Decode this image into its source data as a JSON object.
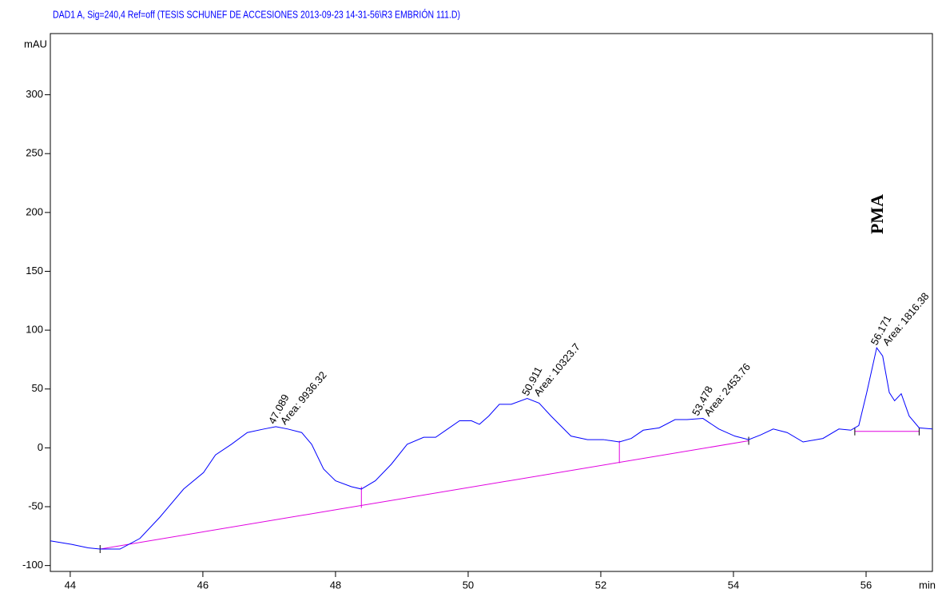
{
  "chart_data": {
    "type": "line",
    "title": "DAD1 A, Sig=240,4 Ref=off (TESIS SCHUNEF DE ACCESIONES 2013-09-23 14-31-56\\R3 EMBRIÓN 111.D)",
    "y_label": "mAU",
    "x_label": "min",
    "annotation": "PMA",
    "xlim": [
      43.7,
      57.0
    ],
    "ylim": [
      -105,
      352
    ],
    "xticks": [
      44,
      46,
      48,
      50,
      52,
      54,
      56
    ],
    "yticks": [
      -100,
      -50,
      0,
      50,
      100,
      150,
      200,
      250,
      300
    ],
    "x": [
      43.7,
      44.02,
      44.27,
      44.45,
      44.75,
      45.05,
      45.35,
      45.71,
      46.01,
      46.19,
      46.43,
      46.67,
      46.92,
      47.1,
      47.28,
      47.49,
      47.64,
      47.82,
      48.0,
      48.24,
      48.39,
      48.6,
      48.84,
      49.08,
      49.33,
      49.51,
      49.69,
      49.87,
      50.05,
      50.17,
      50.31,
      50.47,
      50.65,
      50.89,
      51.07,
      51.25,
      51.55,
      51.8,
      52.04,
      52.28,
      52.46,
      52.64,
      52.88,
      53.12,
      53.3,
      53.54,
      53.78,
      54.02,
      54.23,
      54.41,
      54.6,
      54.81,
      55.05,
      55.35,
      55.59,
      55.77,
      55.89,
      56.01,
      56.16,
      56.25,
      56.35,
      56.43,
      56.53,
      56.65,
      56.8,
      57.0
    ],
    "series": [
      {
        "color": "#0000ff",
        "values": [
          -79,
          -82,
          -85,
          -86,
          -86,
          -77,
          -59,
          -35,
          -21,
          -6,
          3,
          13,
          16,
          18,
          16,
          13,
          3,
          -18,
          -28,
          -33,
          -35,
          -28,
          -14,
          3,
          9,
          9,
          16,
          23,
          23,
          20,
          27,
          37,
          37,
          42,
          38,
          27,
          10,
          7,
          7,
          5,
          8,
          15,
          17,
          24,
          24,
          25,
          16,
          10,
          7,
          11,
          16,
          13,
          5,
          8,
          16,
          15,
          19,
          47,
          85,
          78,
          47,
          40,
          46,
          27,
          17,
          16
        ]
      }
    ],
    "baselines": [
      {
        "color": "#e000e0",
        "x": [
          44.45,
          54.23
        ],
        "values": [
          -86,
          6
        ]
      },
      {
        "color": "#e000e0",
        "x": [
          55.83,
          56.8
        ],
        "values": [
          14,
          14
        ]
      }
    ],
    "separators": [
      {
        "x": 48.39,
        "values": [
          -51,
          -33
        ]
      },
      {
        "x": 52.28,
        "values": [
          -13,
          6
        ]
      }
    ],
    "peaks": [
      {
        "time": 47.089,
        "height": 18,
        "area_label": "Area: 9936.32"
      },
      {
        "time": 50.911,
        "height": 42,
        "area_label": "Area: 10323.7"
      },
      {
        "time": 53.478,
        "height": 25,
        "area_label": "Area: 2453.76"
      },
      {
        "time": 56.171,
        "height": 85,
        "area_label": "Area: 1816.38"
      }
    ]
  }
}
